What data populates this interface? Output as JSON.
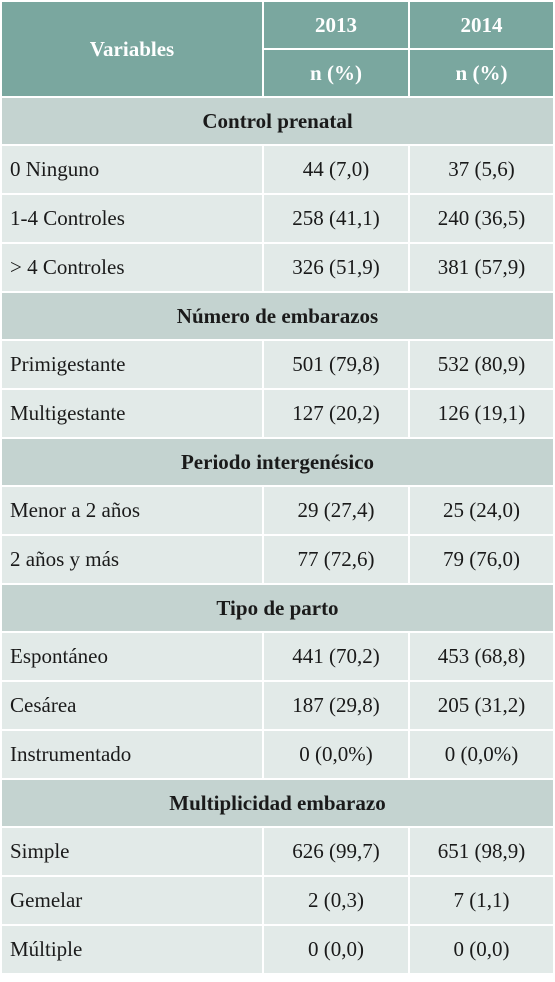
{
  "header": {
    "variables": "Variables",
    "year1": "2013",
    "year2": "2014",
    "unit1": "n (%)",
    "unit2": "n (%)"
  },
  "sections": [
    {
      "title": "Control prenatal",
      "rows": [
        {
          "label": "0 Ninguno",
          "v2013": "44 (7,0)",
          "v2014": "37 (5,6)"
        },
        {
          "label": "1-4 Controles",
          "v2013": "258 (41,1)",
          "v2014": "240 (36,5)"
        },
        {
          "label": "> 4 Controles",
          "v2013": "326 (51,9)",
          "v2014": "381 (57,9)"
        }
      ]
    },
    {
      "title": "Número de embarazos",
      "rows": [
        {
          "label": "Primigestante",
          "v2013": "501 (79,8)",
          "v2014": "532 (80,9)"
        },
        {
          "label": "Multigestante",
          "v2013": "127 (20,2)",
          "v2014": "126 (19,1)"
        }
      ]
    },
    {
      "title": "Periodo intergenésico",
      "rows": [
        {
          "label": "Menor a 2 años",
          "v2013": "29 (27,4)",
          "v2014": "25 (24,0)"
        },
        {
          "label": " 2 años y más",
          "v2013": "77 (72,6)",
          "v2014": "79 (76,0)"
        }
      ]
    },
    {
      "title": "Tipo de parto",
      "rows": [
        {
          "label": "Espontáneo",
          "v2013": "441 (70,2)",
          "v2014": "453 (68,8)"
        },
        {
          "label": "Cesárea",
          "v2013": "187 (29,8)",
          "v2014": "205 (31,2)"
        },
        {
          "label": "Instrumentado",
          "v2013": "0 (0,0%)",
          "v2014": "0 (0,0%)"
        }
      ]
    },
    {
      "title": "Multiplicidad embarazo",
      "rows": [
        {
          "label": "Simple",
          "v2013": "626 (99,7)",
          "v2014": "651 (98,9)"
        },
        {
          "label": "Gemelar",
          "v2013": "2 (0,3)",
          "v2014": "7 (1,1)"
        },
        {
          "label": "Múltiple",
          "v2013": "0 (0,0)",
          "v2014": "0 (0,0)"
        }
      ]
    }
  ]
}
